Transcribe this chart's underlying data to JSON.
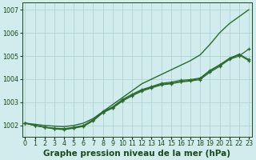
{
  "title": "Graphe pression niveau de la mer (hPa)",
  "xlabel": "Graphe pression niveau de la mer (hPa)",
  "x_hours": [
    0,
    1,
    2,
    3,
    4,
    5,
    6,
    7,
    8,
    9,
    10,
    11,
    12,
    13,
    14,
    15,
    16,
    17,
    18,
    19,
    20,
    21,
    22,
    23
  ],
  "series_smooth": [
    1002.1,
    1002.05,
    1002.0,
    1001.97,
    1001.95,
    1002.0,
    1002.1,
    1002.3,
    1002.6,
    1002.9,
    1003.2,
    1003.5,
    1003.8,
    1004.0,
    1004.2,
    1004.4,
    1004.6,
    1004.8,
    1005.05,
    1005.5,
    1006.0,
    1006.4,
    1006.7,
    1007.0
  ],
  "series_marked": [
    [
      1002.1,
      1002.0,
      1001.92,
      1001.85,
      1001.82,
      1001.88,
      1001.96,
      1002.2,
      1002.55,
      1002.75,
      1003.05,
      1003.28,
      1003.48,
      1003.62,
      1003.75,
      1003.8,
      1003.88,
      1003.92,
      1003.98,
      1004.3,
      1004.55,
      1004.85,
      1005.0,
      1005.3
    ],
    [
      1002.1,
      1002.0,
      1001.92,
      1001.87,
      1001.84,
      1001.9,
      1001.98,
      1002.22,
      1002.57,
      1002.77,
      1003.08,
      1003.3,
      1003.52,
      1003.65,
      1003.78,
      1003.82,
      1003.9,
      1003.95,
      1004.02,
      1004.35,
      1004.6,
      1004.88,
      1005.05,
      1004.8
    ],
    [
      1002.1,
      1002.0,
      1001.93,
      1001.88,
      1001.86,
      1001.92,
      1002.0,
      1002.25,
      1002.6,
      1002.8,
      1003.12,
      1003.35,
      1003.55,
      1003.68,
      1003.82,
      1003.87,
      1003.95,
      1003.98,
      1004.05,
      1004.38,
      1004.62,
      1004.9,
      1005.08,
      1004.85
    ]
  ],
  "line_color": "#2d6a2d",
  "marker_color": "#2d6a2d",
  "background_color": "#d0ecec",
  "grid_color": "#aacfcf",
  "axis_label_color": "#1a4a1a",
  "ylim": [
    1001.5,
    1007.3
  ],
  "yticks": [
    1002,
    1003,
    1004,
    1005,
    1006,
    1007
  ],
  "xlim": [
    -0.3,
    23.3
  ],
  "figsize": [
    3.2,
    2.0
  ],
  "dpi": 100,
  "title_fontsize": 7.5,
  "tick_fontsize": 5.8
}
